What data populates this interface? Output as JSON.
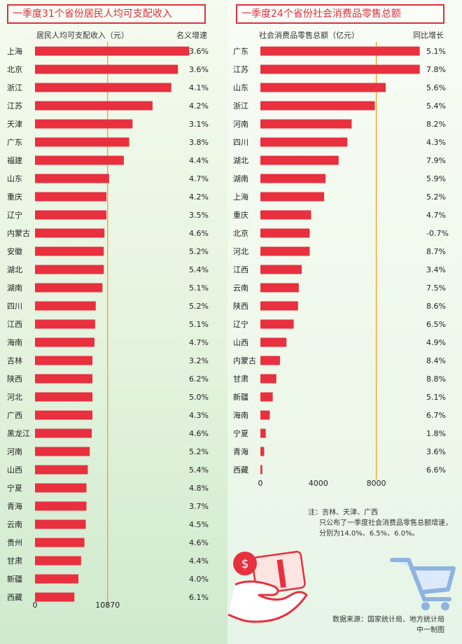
{
  "left": {
    "title": "一季度31个省份居民人均可支配收入",
    "value_header": "居民人均可支配收入（元）",
    "growth_header": "名义增速"
  },
  "right": {
    "title": "一季度24个省份社会消费品零售总额",
    "value_header": "社会消费品零售总额（亿元）",
    "growth_header": "同比增长"
  },
  "note": {
    "line1": "注：吉林、天津、广西",
    "line2": "只公布了一季度社会消费品零售总额增速，",
    "line3": "分别为14.0%、6.5%、6.0%。"
  },
  "source": {
    "line1": "数据来源：国家统计局、地方统计局",
    "line2": "中一制图"
  },
  "icons": [
    "money-hand-icon",
    "shopping-cart-icon"
  ],
  "colors": {
    "bar": "#e8303f",
    "refline": "#f0a21c",
    "title": "#d9333f"
  },
  "chart_data": [
    {
      "type": "bar",
      "orientation": "horizontal",
      "title": "一季度31个省份居民人均可支配收入",
      "xlabel": "居民人均可支配收入（元）",
      "growth_label": "名义增速",
      "xlim": [
        0,
        24000
      ],
      "xticks": [
        0,
        10870
      ],
      "reference_line": 10870,
      "categories": [
        "上海",
        "北京",
        "浙江",
        "江苏",
        "天津",
        "广东",
        "福建",
        "山东",
        "重庆",
        "辽宁",
        "内蒙古",
        "安徽",
        "湖北",
        "湖南",
        "四川",
        "江西",
        "海南",
        "吉林",
        "陕西",
        "河北",
        "广西",
        "黑龙江",
        "河南",
        "山西",
        "宁夏",
        "青海",
        "云南",
        "贵州",
        "甘肃",
        "新疆",
        "西藏"
      ],
      "values": [
        23100,
        21400,
        20400,
        17600,
        14600,
        14100,
        13300,
        11100,
        10700,
        10700,
        10400,
        10300,
        10300,
        10100,
        9100,
        9000,
        8900,
        8600,
        8600,
        8600,
        8600,
        8500,
        8200,
        7900,
        7700,
        7700,
        7600,
        7400,
        6900,
        6500,
        5900
      ],
      "growth": [
        "3.6%",
        "3.6%",
        "4.1%",
        "4.2%",
        "3.1%",
        "3.8%",
        "4.4%",
        "4.7%",
        "4.2%",
        "3.5%",
        "4.6%",
        "5.2%",
        "5.4%",
        "5.1%",
        "5.2%",
        "5.1%",
        "4.7%",
        "3.2%",
        "6.2%",
        "5.0%",
        "4.3%",
        "4.6%",
        "5.2%",
        "5.4%",
        "4.8%",
        "3.7%",
        "4.5%",
        "4.6%",
        "4.4%",
        "4.0%",
        "6.1%"
      ]
    },
    {
      "type": "bar",
      "orientation": "horizontal",
      "title": "一季度24个省份社会消费品零售总额",
      "xlabel": "社会消费品零售总额（亿元）",
      "growth_label": "同比增长",
      "xlim": [
        0,
        11500
      ],
      "xticks": [
        0,
        4000,
        8000
      ],
      "reference_line": 8000,
      "categories": [
        "广东",
        "江苏",
        "山东",
        "浙江",
        "河南",
        "四川",
        "湖北",
        "湖南",
        "上海",
        "重庆",
        "北京",
        "河北",
        "江西",
        "云南",
        "陕西",
        "辽宁",
        "山西",
        "内蒙古",
        "甘肃",
        "新疆",
        "海南",
        "宁夏",
        "青海",
        "西藏"
      ],
      "values": [
        11000,
        11000,
        8650,
        7900,
        6300,
        6000,
        5400,
        4500,
        4400,
        3500,
        3400,
        3400,
        2850,
        2650,
        2600,
        2300,
        1800,
        1350,
        1100,
        850,
        650,
        370,
        260,
        130
      ],
      "growth": [
        "5.1%",
        "7.8%",
        "5.6%",
        "5.4%",
        "8.2%",
        "4.3%",
        "7.9%",
        "5.9%",
        "5.2%",
        "4.7%",
        "-0.7%",
        "8.7%",
        "3.4%",
        "7.5%",
        "8.6%",
        "6.5%",
        "4.9%",
        "8.4%",
        "8.8%",
        "5.1%",
        "6.7%",
        "1.8%",
        "3.6%",
        "6.6%"
      ]
    }
  ]
}
